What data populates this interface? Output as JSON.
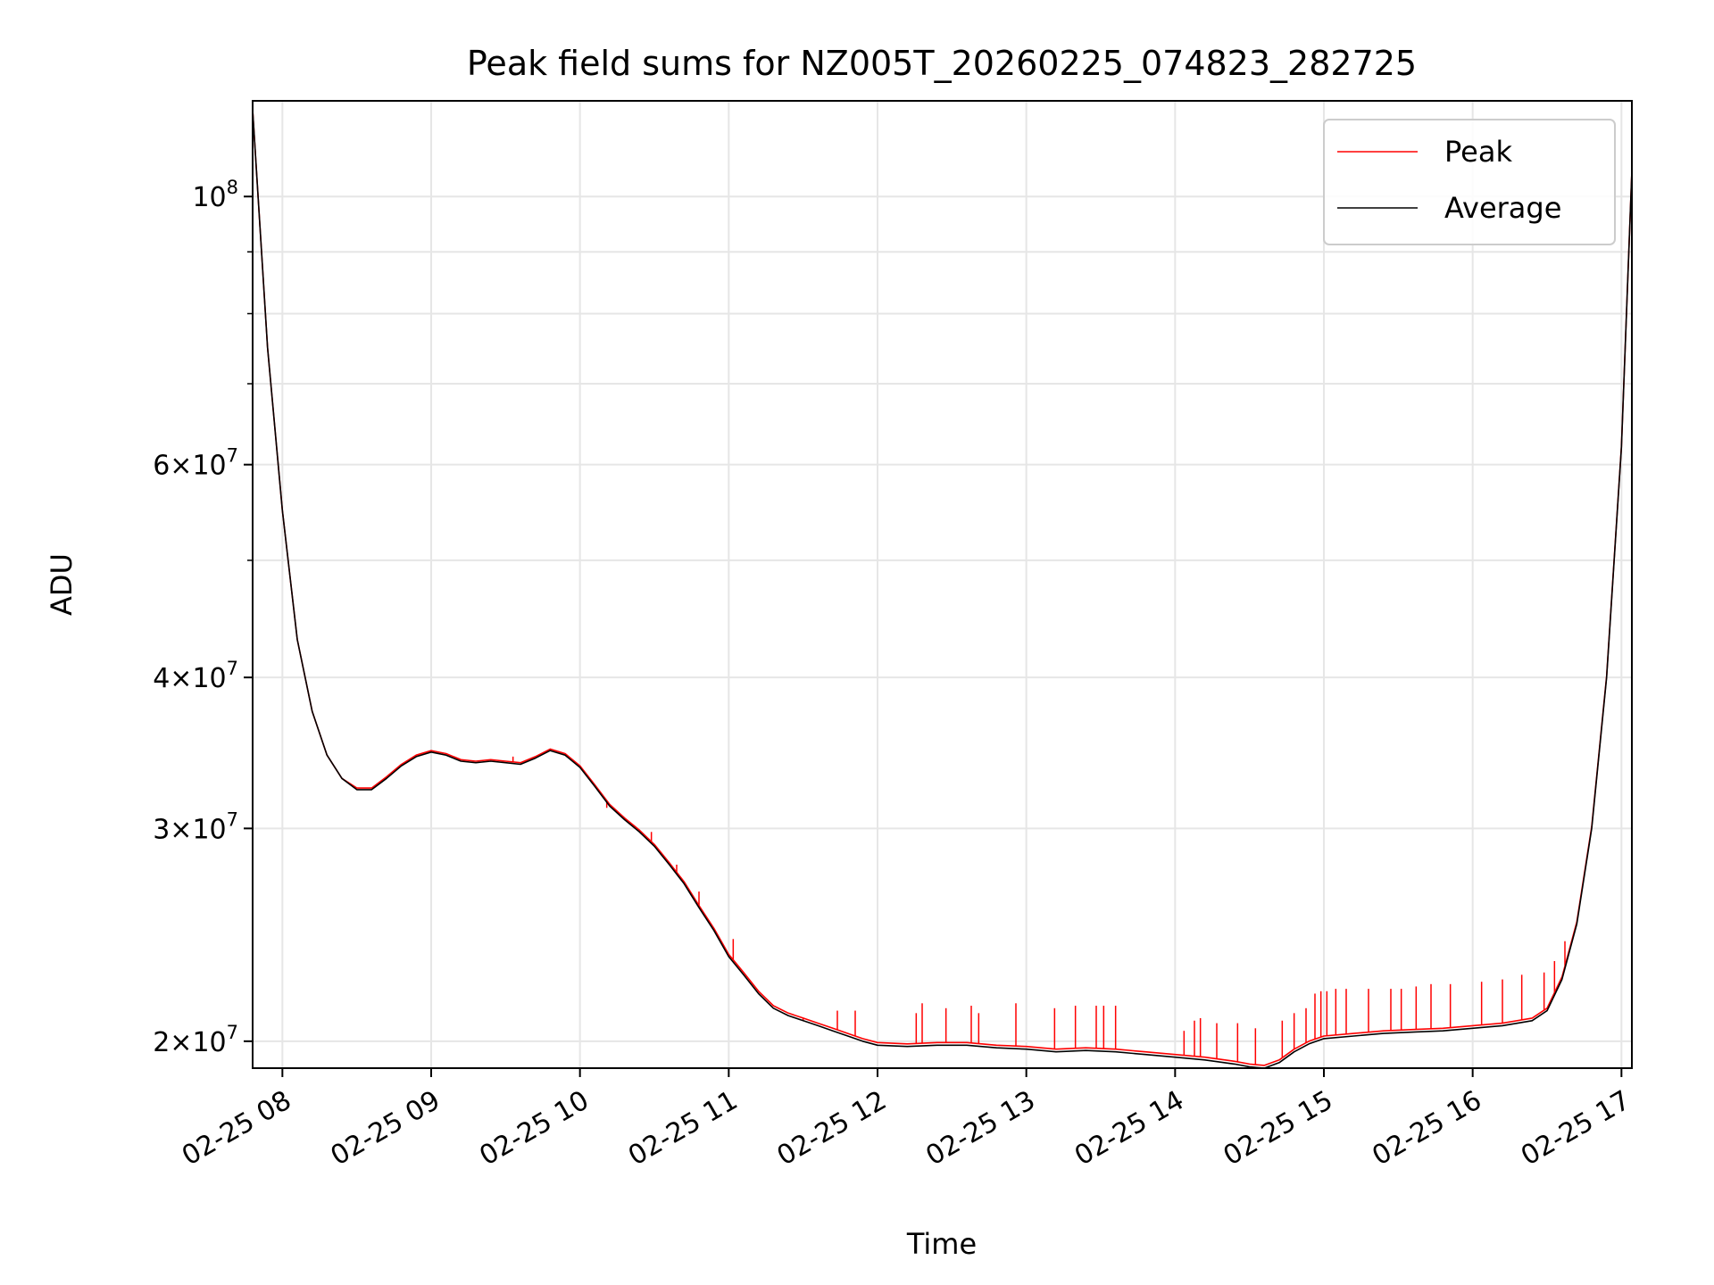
{
  "chart_data": {
    "type": "line",
    "title": "Peak field sums for NZ005T_20260225_074823_282725",
    "xlabel": "Time",
    "ylabel": "ADU",
    "yscale": "log",
    "xlim": [
      7.8,
      17.07
    ],
    "ylim": [
      19000000,
      120000000
    ],
    "grid": true,
    "legend_position": "top-right",
    "x_ticks": [
      {
        "value": 8,
        "label": "02-25 08"
      },
      {
        "value": 9,
        "label": "02-25 09"
      },
      {
        "value": 10,
        "label": "02-25 10"
      },
      {
        "value": 11,
        "label": "02-25 11"
      },
      {
        "value": 12,
        "label": "02-25 12"
      },
      {
        "value": 13,
        "label": "02-25 13"
      },
      {
        "value": 14,
        "label": "02-25 14"
      },
      {
        "value": 15,
        "label": "02-25 15"
      },
      {
        "value": 16,
        "label": "02-25 16"
      },
      {
        "value": 17,
        "label": "02-25 17"
      }
    ],
    "y_major_ticks": [
      {
        "value": 100000000,
        "mantissa": "",
        "base": "10",
        "exp": "8"
      },
      {
        "value": 60000000,
        "mantissa": "6",
        "base": "10",
        "exp": "7"
      },
      {
        "value": 40000000,
        "mantissa": "4",
        "base": "10",
        "exp": "7"
      },
      {
        "value": 30000000,
        "mantissa": "3",
        "base": "10",
        "exp": "7"
      },
      {
        "value": 20000000,
        "mantissa": "2",
        "base": "10",
        "exp": "7"
      }
    ],
    "y_minor_gridlines": [
      50000000,
      70000000,
      80000000,
      90000000
    ],
    "series": [
      {
        "name": "Average",
        "color": "#000000",
        "points": [
          [
            7.8,
            118000000
          ],
          [
            7.9,
            75000000
          ],
          [
            8.0,
            55000000
          ],
          [
            8.1,
            43000000
          ],
          [
            8.2,
            37500000
          ],
          [
            8.3,
            34500000
          ],
          [
            8.4,
            33000000
          ],
          [
            8.5,
            32300000
          ],
          [
            8.6,
            32300000
          ],
          [
            8.7,
            33000000
          ],
          [
            8.8,
            33800000
          ],
          [
            8.9,
            34400000
          ],
          [
            9.0,
            34700000
          ],
          [
            9.1,
            34500000
          ],
          [
            9.2,
            34100000
          ],
          [
            9.3,
            34000000
          ],
          [
            9.4,
            34100000
          ],
          [
            9.5,
            34000000
          ],
          [
            9.6,
            33900000
          ],
          [
            9.7,
            34300000
          ],
          [
            9.8,
            34800000
          ],
          [
            9.9,
            34500000
          ],
          [
            10.0,
            33700000
          ],
          [
            10.1,
            32500000
          ],
          [
            10.2,
            31300000
          ],
          [
            10.3,
            30500000
          ],
          [
            10.4,
            29800000
          ],
          [
            10.5,
            29000000
          ],
          [
            10.6,
            28000000
          ],
          [
            10.7,
            27000000
          ],
          [
            10.8,
            25800000
          ],
          [
            10.9,
            24700000
          ],
          [
            11.0,
            23500000
          ],
          [
            11.1,
            22700000
          ],
          [
            11.2,
            21900000
          ],
          [
            11.3,
            21300000
          ],
          [
            11.4,
            21000000
          ],
          [
            11.5,
            20800000
          ],
          [
            11.6,
            20600000
          ],
          [
            11.7,
            20400000
          ],
          [
            11.8,
            20200000
          ],
          [
            11.9,
            20000000
          ],
          [
            12.0,
            19850000
          ],
          [
            12.2,
            19800000
          ],
          [
            12.4,
            19850000
          ],
          [
            12.6,
            19850000
          ],
          [
            12.8,
            19750000
          ],
          [
            13.0,
            19700000
          ],
          [
            13.2,
            19600000
          ],
          [
            13.4,
            19650000
          ],
          [
            13.6,
            19600000
          ],
          [
            13.8,
            19500000
          ],
          [
            14.0,
            19400000
          ],
          [
            14.2,
            19300000
          ],
          [
            14.4,
            19150000
          ],
          [
            14.5,
            19050000
          ],
          [
            14.6,
            19000000
          ],
          [
            14.7,
            19200000
          ],
          [
            14.8,
            19600000
          ],
          [
            14.9,
            19900000
          ],
          [
            15.0,
            20100000
          ],
          [
            15.2,
            20200000
          ],
          [
            15.4,
            20300000
          ],
          [
            15.6,
            20350000
          ],
          [
            15.8,
            20400000
          ],
          [
            16.0,
            20500000
          ],
          [
            16.2,
            20600000
          ],
          [
            16.4,
            20800000
          ],
          [
            16.5,
            21200000
          ],
          [
            16.6,
            22500000
          ],
          [
            16.7,
            25000000
          ],
          [
            16.8,
            30000000
          ],
          [
            16.9,
            40000000
          ],
          [
            17.0,
            62000000
          ],
          [
            17.07,
            105000000
          ]
        ]
      },
      {
        "name": "Peak",
        "color": "#ff0000",
        "points": [
          [
            7.8,
            118000000
          ],
          [
            7.9,
            75000000
          ],
          [
            8.0,
            55000000
          ],
          [
            8.1,
            43000000
          ],
          [
            8.2,
            37500000
          ],
          [
            8.3,
            34500000
          ],
          [
            8.4,
            33000000
          ],
          [
            8.5,
            32400000
          ],
          [
            8.6,
            32400000
          ],
          [
            8.7,
            33100000
          ],
          [
            8.8,
            33900000
          ],
          [
            8.9,
            34500000
          ],
          [
            9.0,
            34800000
          ],
          [
            9.1,
            34600000
          ],
          [
            9.2,
            34200000
          ],
          [
            9.3,
            34100000
          ],
          [
            9.4,
            34200000
          ],
          [
            9.5,
            34100000
          ],
          [
            9.6,
            34000000
          ],
          [
            9.7,
            34400000
          ],
          [
            9.8,
            34900000
          ],
          [
            9.9,
            34600000
          ],
          [
            10.0,
            33800000
          ],
          [
            10.1,
            32600000
          ],
          [
            10.2,
            31400000
          ],
          [
            10.3,
            30600000
          ],
          [
            10.4,
            29900000
          ],
          [
            10.5,
            29100000
          ],
          [
            10.6,
            28100000
          ],
          [
            10.7,
            27100000
          ],
          [
            10.8,
            25900000
          ],
          [
            10.9,
            24800000
          ],
          [
            11.0,
            23600000
          ],
          [
            11.1,
            22800000
          ],
          [
            11.2,
            22000000
          ],
          [
            11.3,
            21400000
          ],
          [
            11.4,
            21100000
          ],
          [
            11.5,
            20900000
          ],
          [
            11.6,
            20700000
          ],
          [
            11.7,
            20500000
          ],
          [
            11.8,
            20300000
          ],
          [
            11.9,
            20100000
          ],
          [
            12.0,
            19950000
          ],
          [
            12.2,
            19900000
          ],
          [
            12.4,
            19950000
          ],
          [
            12.6,
            19950000
          ],
          [
            12.8,
            19850000
          ],
          [
            13.0,
            19800000
          ],
          [
            13.2,
            19700000
          ],
          [
            13.4,
            19750000
          ],
          [
            13.6,
            19700000
          ],
          [
            13.8,
            19600000
          ],
          [
            14.0,
            19500000
          ],
          [
            14.2,
            19400000
          ],
          [
            14.4,
            19250000
          ],
          [
            14.5,
            19150000
          ],
          [
            14.6,
            19100000
          ],
          [
            14.7,
            19300000
          ],
          [
            14.8,
            19700000
          ],
          [
            14.9,
            20000000
          ],
          [
            15.0,
            20200000
          ],
          [
            15.2,
            20300000
          ],
          [
            15.4,
            20400000
          ],
          [
            15.6,
            20450000
          ],
          [
            15.8,
            20500000
          ],
          [
            16.0,
            20600000
          ],
          [
            16.2,
            20700000
          ],
          [
            16.4,
            20900000
          ],
          [
            16.5,
            21300000
          ],
          [
            16.6,
            22600000
          ],
          [
            16.7,
            25100000
          ],
          [
            16.8,
            30100000
          ],
          [
            16.9,
            40100000
          ],
          [
            17.0,
            62100000
          ],
          [
            17.07,
            105000000
          ]
        ],
        "spikes": [
          [
            9.55,
            34400000
          ],
          [
            10.18,
            31200000
          ],
          [
            10.48,
            29800000
          ],
          [
            10.65,
            28000000
          ],
          [
            10.8,
            26600000
          ],
          [
            11.03,
            24300000
          ],
          [
            11.5,
            20800000
          ],
          [
            11.73,
            21200000
          ],
          [
            11.85,
            21200000
          ],
          [
            12.26,
            21100000
          ],
          [
            12.3,
            21500000
          ],
          [
            12.46,
            21300000
          ],
          [
            12.63,
            21400000
          ],
          [
            12.68,
            21100000
          ],
          [
            12.93,
            21500000
          ],
          [
            13.19,
            21300000
          ],
          [
            13.33,
            21400000
          ],
          [
            13.47,
            21400000
          ],
          [
            13.52,
            21400000
          ],
          [
            13.6,
            21400000
          ],
          [
            14.06,
            20400000
          ],
          [
            14.13,
            20800000
          ],
          [
            14.17,
            20900000
          ],
          [
            14.28,
            20700000
          ],
          [
            14.42,
            20700000
          ],
          [
            14.54,
            20500000
          ],
          [
            14.72,
            20800000
          ],
          [
            14.8,
            21100000
          ],
          [
            14.88,
            21300000
          ],
          [
            14.94,
            21900000
          ],
          [
            14.98,
            22000000
          ],
          [
            15.02,
            22000000
          ],
          [
            15.08,
            22100000
          ],
          [
            15.15,
            22100000
          ],
          [
            15.3,
            22100000
          ],
          [
            15.45,
            22100000
          ],
          [
            15.52,
            22100000
          ],
          [
            15.62,
            22200000
          ],
          [
            15.72,
            22300000
          ],
          [
            15.85,
            22300000
          ],
          [
            16.06,
            22400000
          ],
          [
            16.2,
            22500000
          ],
          [
            16.33,
            22700000
          ],
          [
            16.48,
            22800000
          ],
          [
            16.55,
            23300000
          ],
          [
            16.62,
            24200000
          ]
        ]
      }
    ]
  }
}
